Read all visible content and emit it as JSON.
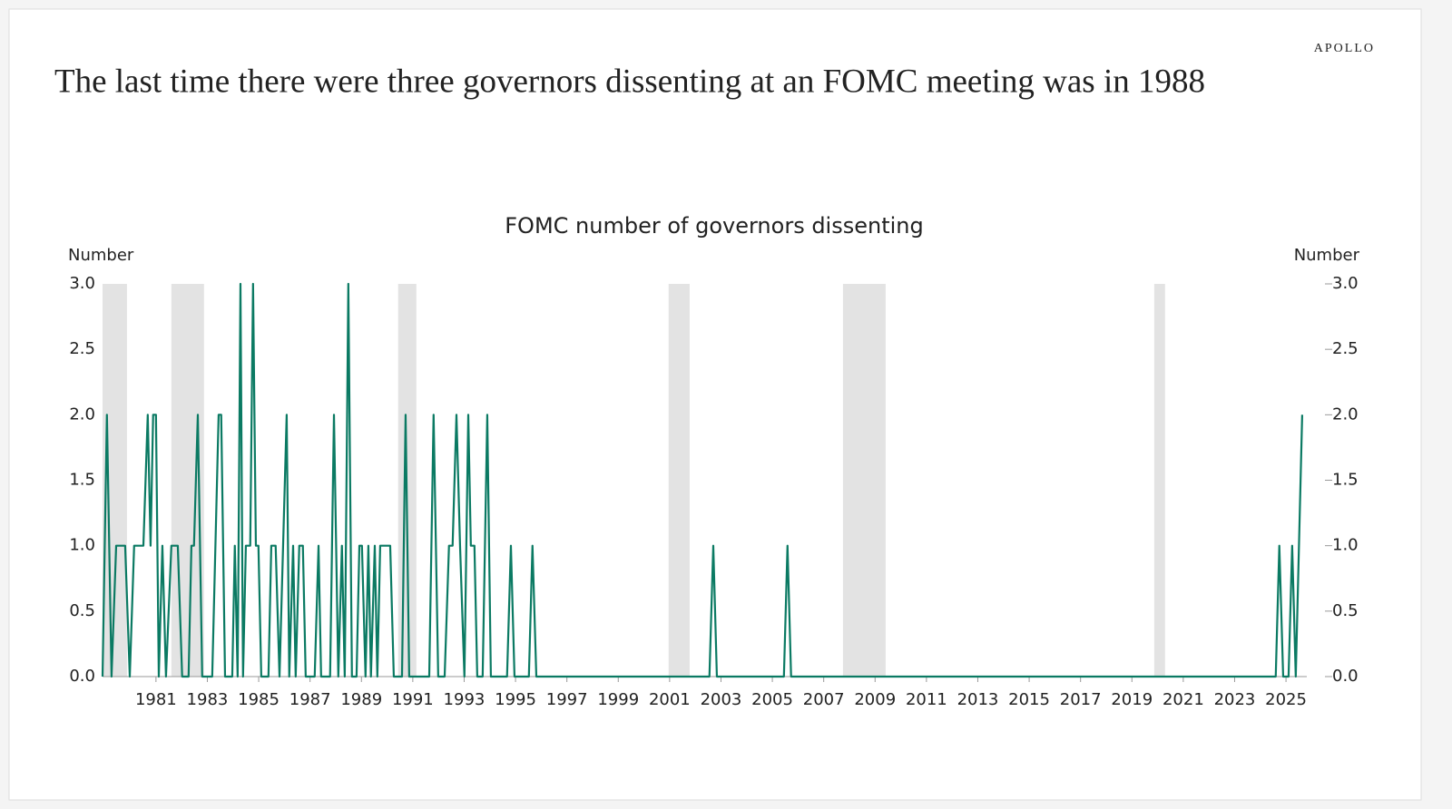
{
  "brand": "APOLLO",
  "headline": "The last time there were three governors dissenting at an FOMC meeting was in 1988",
  "chart_data": {
    "type": "line",
    "title": "FOMC number of governors dissenting",
    "ylabel": "Number",
    "y2label": "Number",
    "x": [
      1978.92,
      1979.09,
      1979.27,
      1979.45,
      1979.8,
      1979.98,
      1980.15,
      1980.51,
      1980.68,
      1980.79,
      1980.89,
      1981.0,
      1981.11,
      1981.25,
      1981.39,
      1981.6,
      1981.85,
      1982.02,
      1982.27,
      1982.38,
      1982.48,
      1982.63,
      1982.8,
      1983.19,
      1983.44,
      1983.54,
      1983.69,
      1983.97,
      1984.07,
      1984.18,
      1984.29,
      1984.39,
      1984.5,
      1984.67,
      1984.78,
      1984.89,
      1984.99,
      1985.1,
      1985.38,
      1985.49,
      1985.66,
      1985.81,
      1985.95,
      1986.09,
      1986.19,
      1986.34,
      1986.44,
      1986.58,
      1986.72,
      1986.83,
      1987.18,
      1987.33,
      1987.43,
      1987.78,
      1987.93,
      1988.1,
      1988.24,
      1988.35,
      1988.49,
      1988.63,
      1988.81,
      1988.92,
      1989.02,
      1989.16,
      1989.27,
      1989.37,
      1989.52,
      1989.62,
      1989.73,
      1989.9,
      1990.12,
      1990.26,
      1990.58,
      1990.72,
      1990.86,
      1991.64,
      1991.81,
      1991.99,
      1992.24,
      1992.41,
      1992.55,
      1992.7,
      1992.84,
      1993.01,
      1993.16,
      1993.26,
      1993.4,
      1993.51,
      1993.72,
      1993.9,
      1994.04,
      1994.67,
      1994.82,
      1994.96,
      1995.52,
      1995.66,
      1995.81,
      2002.55,
      2002.7,
      2002.84,
      2005.45,
      2005.59,
      2005.73,
      2024.6,
      2024.74,
      2024.89,
      2025.1,
      2025.24,
      2025.38,
      2025.63
    ],
    "series": [
      {
        "color": "#0b7a63",
        "values": [
          0,
          2,
          0,
          1,
          1,
          0,
          1,
          1,
          2,
          1,
          2,
          2,
          0,
          1,
          0,
          1,
          1,
          0,
          0,
          1,
          1,
          2,
          0,
          0,
          2,
          2,
          0,
          0,
          1,
          0,
          3,
          0,
          1,
          1,
          3,
          1,
          1,
          0,
          0,
          1,
          1,
          0,
          1,
          2,
          0,
          1,
          0,
          1,
          1,
          0,
          0,
          1,
          0,
          0,
          2,
          0,
          1,
          0,
          3,
          0,
          0,
          1,
          1,
          0,
          1,
          0,
          1,
          0,
          1,
          1,
          1,
          0,
          0,
          2,
          0,
          0,
          2,
          0,
          0,
          1,
          1,
          2,
          1,
          0,
          2,
          1,
          1,
          0,
          0,
          2,
          0,
          0,
          1,
          0,
          0,
          1,
          0,
          0,
          1,
          0,
          0,
          1,
          0,
          0,
          1,
          0,
          0,
          1,
          0,
          2
        ]
      }
    ],
    "recessions": [
      [
        1978.92,
        1979.87
      ],
      [
        1981.6,
        1982.87
      ],
      [
        1990.43,
        1991.14
      ],
      [
        2000.96,
        2001.78
      ],
      [
        2007.75,
        2009.41
      ],
      [
        2019.87,
        2020.29
      ]
    ],
    "recession_color": "#e3e3e3",
    "xlim": [
      1978.92,
      2025.81
    ],
    "xticks": [
      1981,
      1983,
      1985,
      1987,
      1989,
      1991,
      1993,
      1995,
      1997,
      1999,
      2001,
      2003,
      2005,
      2007,
      2009,
      2011,
      2013,
      2015,
      2017,
      2019,
      2021,
      2023,
      2025
    ],
    "ylim": [
      0,
      3
    ],
    "yticks": [
      {
        "value": 0,
        "label": "0.0"
      },
      {
        "value": 0.5,
        "label": "0.5"
      },
      {
        "value": 1,
        "label": "1.0"
      },
      {
        "value": 1.5,
        "label": "1.5"
      },
      {
        "value": 2,
        "label": "2.0"
      },
      {
        "value": 2.5,
        "label": "2.5"
      },
      {
        "value": 3,
        "label": "3.0"
      }
    ],
    "y2lim": [
      0,
      3
    ],
    "y2ticks": [
      {
        "value": 0,
        "label": "0.0"
      },
      {
        "value": 0.5,
        "label": "0.5"
      },
      {
        "value": 1,
        "label": "1.0"
      },
      {
        "value": 1.5,
        "label": "1.5"
      },
      {
        "value": 2,
        "label": "2.0"
      },
      {
        "value": 2.5,
        "label": "2.5"
      },
      {
        "value": 3,
        "label": "3.0"
      }
    ]
  }
}
